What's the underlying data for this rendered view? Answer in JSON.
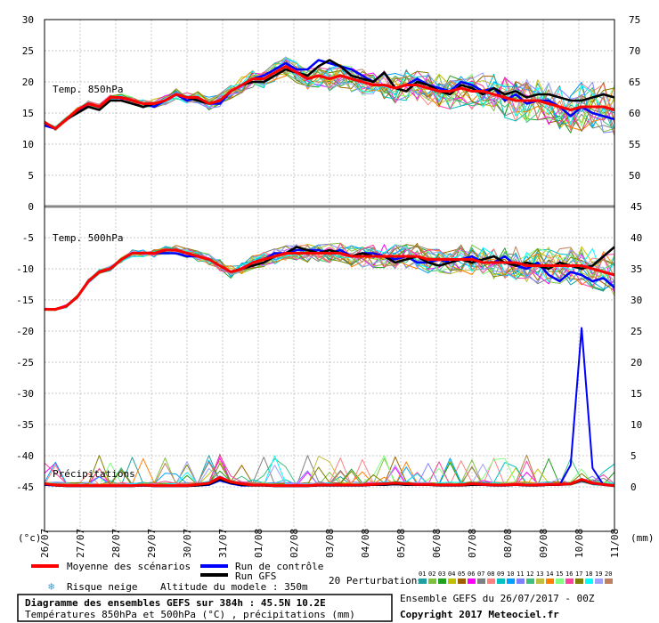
{
  "chart_data": {
    "type": "line",
    "dates": [
      "26/07",
      "27/07",
      "28/07",
      "29/07",
      "30/07",
      "31/07",
      "01/08",
      "02/08",
      "03/08",
      "04/08",
      "05/08",
      "06/08",
      "07/08",
      "08/08",
      "09/08",
      "10/08",
      "11/08"
    ],
    "left_axis": {
      "unit": "(°c)",
      "ticks": [
        30,
        25,
        20,
        15,
        10,
        5,
        0,
        -5,
        -10,
        -15,
        -20,
        -25,
        -30,
        -35,
        -40,
        -45
      ]
    },
    "right_axis": {
      "unit": "(mm)",
      "ticks_top": [
        75,
        70,
        65,
        60,
        55,
        50
      ],
      "ticks_bottom": [
        45,
        40,
        35,
        30,
        25,
        20,
        15,
        10,
        5,
        0
      ]
    },
    "panels": {
      "t850": {
        "label": "Temp. 850hPa",
        "ylim": [
          0,
          30
        ],
        "mean": [
          13.5,
          12.5,
          14,
          15.5,
          16.5,
          16,
          17.5,
          17.5,
          17,
          16.5,
          16.5,
          17,
          18,
          17.5,
          17.5,
          16.5,
          17,
          18.5,
          19.5,
          20.5,
          20.5,
          21.5,
          22.5,
          21.5,
          20.5,
          21,
          20.5,
          21,
          20.5,
          20,
          19.5,
          19.5,
          19,
          19.5,
          19.5,
          19,
          18.5,
          18.5,
          19,
          18.5,
          18.5,
          18,
          17.5,
          17,
          17,
          17,
          16.5,
          16,
          15.5,
          16,
          16,
          16,
          15.5
        ],
        "control": [
          13,
          12.5,
          14,
          15,
          16.5,
          16,
          17.5,
          17.5,
          17,
          16.5,
          16,
          17,
          18,
          17,
          17.5,
          16.5,
          16.5,
          18.5,
          19.5,
          20.5,
          21,
          22,
          23,
          22,
          22,
          23.5,
          23,
          22.5,
          22,
          21,
          20,
          21.5,
          19,
          19.5,
          20.5,
          19.5,
          19,
          18.5,
          20,
          19.5,
          18.5,
          19,
          17,
          18,
          16.5,
          17,
          17,
          16,
          14.5,
          16,
          15,
          14.5,
          14
        ],
        "gfs": [
          13.5,
          12.5,
          14,
          15,
          16,
          15.5,
          17,
          17,
          16.5,
          16,
          16.5,
          17,
          18,
          17.5,
          17,
          16.5,
          17,
          18.5,
          19.5,
          20,
          20,
          21,
          22,
          21.5,
          21,
          22.5,
          23.5,
          22.5,
          21,
          20.5,
          20,
          21.5,
          19,
          18.5,
          20,
          19.5,
          18.5,
          18,
          19.5,
          19,
          18,
          19,
          18,
          18.5,
          17.5,
          18,
          18,
          17.5,
          17,
          17,
          17.5,
          18,
          17.5
        ]
      },
      "t500": {
        "label": "Temp. 500hPa",
        "ylim": [
          -20,
          -5
        ],
        "mean": [
          -16.5,
          -16.5,
          -16,
          -14.5,
          -12,
          -10.5,
          -10,
          -8.5,
          -7.5,
          -7.5,
          -7.5,
          -7,
          -7,
          -7.5,
          -8,
          -8.5,
          -9.5,
          -10.5,
          -10,
          -9,
          -8.5,
          -8,
          -7.5,
          -7.5,
          -7.5,
          -7.5,
          -7.5,
          -7.5,
          -8,
          -8,
          -8,
          -8,
          -8,
          -8,
          -8,
          -8.5,
          -8.5,
          -8.5,
          -8.5,
          -8.5,
          -9,
          -9,
          -9,
          -9,
          -9.5,
          -9.5,
          -9.5,
          -9.5,
          -9.5,
          -9.5,
          -10,
          -10.5,
          -11
        ],
        "control": [
          -16.5,
          -16.5,
          -16,
          -14.5,
          -12,
          -10.5,
          -10,
          -8.5,
          -7.5,
          -7.5,
          -7.5,
          -7.5,
          -7.5,
          -8,
          -8,
          -8.5,
          -9.5,
          -10.5,
          -10,
          -9,
          -8.5,
          -7.5,
          -7.5,
          -7,
          -7,
          -7,
          -7.5,
          -7,
          -8,
          -7.5,
          -7.5,
          -8,
          -8.5,
          -8,
          -9,
          -9,
          -8.5,
          -9,
          -8.5,
          -8,
          -9,
          -9,
          -8,
          -9.5,
          -10,
          -9,
          -11,
          -12,
          -10.5,
          -11,
          -12,
          -11.5,
          -13
        ],
        "gfs": [
          -16.5,
          -16.5,
          -16,
          -14.5,
          -12,
          -10.5,
          -10,
          -8.5,
          -7.5,
          -7.5,
          -7.5,
          -7,
          -7,
          -7.5,
          -8,
          -8.5,
          -9.5,
          -10.5,
          -10,
          -9.5,
          -9,
          -8,
          -7.5,
          -6.5,
          -7,
          -7.5,
          -7,
          -7.5,
          -8,
          -7.5,
          -8,
          -8,
          -9,
          -8.5,
          -8,
          -9,
          -9.5,
          -9,
          -8.5,
          -9,
          -8.5,
          -8,
          -9,
          -9.5,
          -9,
          -9.5,
          -10,
          -9,
          -9.5,
          -10,
          -9.5,
          -8,
          -6.5
        ]
      },
      "precip": {
        "label": "Précipitations",
        "ylim": [
          0,
          45
        ],
        "mean": [
          0.5,
          0.3,
          0.2,
          0.2,
          0.2,
          0.2,
          0.2,
          0.2,
          0.2,
          0.3,
          0.2,
          0.2,
          0.2,
          0.2,
          0.4,
          0.6,
          1.5,
          0.8,
          0.5,
          0.3,
          0.3,
          0.2,
          0.2,
          0.2,
          0.2,
          0.3,
          0.3,
          0.3,
          0.3,
          0.3,
          0.4,
          0.5,
          0.6,
          0.5,
          0.4,
          0.4,
          0.3,
          0.3,
          0.3,
          0.5,
          0.4,
          0.3,
          0.3,
          0.4,
          0.3,
          0.3,
          0.4,
          0.4,
          0.5,
          1.2,
          0.6,
          0.4,
          0.2
        ],
        "control": [
          0.3,
          0.2,
          0.1,
          0.1,
          0.1,
          0.1,
          0.1,
          0.1,
          0.1,
          0.2,
          0.1,
          0.1,
          0.1,
          0.1,
          0.2,
          0.3,
          1.0,
          0.5,
          0.2,
          0.2,
          0.2,
          0.1,
          0.1,
          0.1,
          0.1,
          0.2,
          0.2,
          0.2,
          0.2,
          0.2,
          0.3,
          0.3,
          0.4,
          0.3,
          0.3,
          0.3,
          0.2,
          0.2,
          0.2,
          0.3,
          0.3,
          0.2,
          0.2,
          0.3,
          0.2,
          0.2,
          0.3,
          0.3,
          3.5,
          25.5,
          3.0,
          0.3,
          0.1
        ],
        "gfs": [
          0.4,
          0.2,
          0.1,
          0.1,
          0.1,
          0.1,
          0.1,
          0.1,
          0.1,
          0.2,
          0.1,
          0.1,
          0.1,
          0.1,
          0.2,
          0.4,
          1.2,
          0.6,
          0.3,
          0.2,
          0.2,
          0.1,
          0.1,
          0.1,
          0.1,
          0.2,
          0.2,
          0.2,
          0.2,
          0.2,
          0.3,
          0.3,
          0.4,
          0.3,
          0.3,
          0.3,
          0.2,
          0.2,
          0.2,
          0.3,
          0.3,
          0.2,
          0.2,
          0.3,
          0.2,
          0.2,
          0.3,
          0.3,
          0.4,
          1.0,
          0.5,
          0.3,
          0.1
        ]
      }
    },
    "perturbation_colors": [
      "#20a0a0",
      "#80c040",
      "#20a020",
      "#c0c000",
      "#a06000",
      "#ff00ff",
      "#808080",
      "#ff8080",
      "#00c0c0",
      "#00a0ff",
      "#8080ff",
      "#40c080",
      "#c0c040",
      "#ff8000",
      "#80ff80",
      "#ff40a0",
      "#808000",
      "#00ffff",
      "#a0a0ff",
      "#c08060"
    ],
    "colors": {
      "mean": "#ff0000",
      "control": "#0000ff",
      "gfs": "#000000"
    }
  },
  "legend": {
    "mean": "Moyenne des scénarios",
    "control": "Run de contrôle",
    "gfs": "Run GFS",
    "snow": "Risque neige",
    "altitude": "Altitude du modele : 350m",
    "perturbations": "20 Perturbations",
    "pert_numbers": [
      "01",
      "02",
      "03",
      "04",
      "05",
      "06",
      "07",
      "08",
      "09",
      "10",
      "11",
      "12",
      "13",
      "14",
      "15",
      "16",
      "17",
      "18",
      "19",
      "20"
    ]
  },
  "footer": {
    "title": "Diagramme des ensembles GEFS sur 384h : 45.5N 10.2E",
    "subtitle": "Températures 850hPa et 500hPa (°C) , précipitations (mm)",
    "ensemble": "Ensemble GEFS du 26/07/2017 - 00Z",
    "copyright": "Copyright 2017 Meteociel.fr"
  }
}
